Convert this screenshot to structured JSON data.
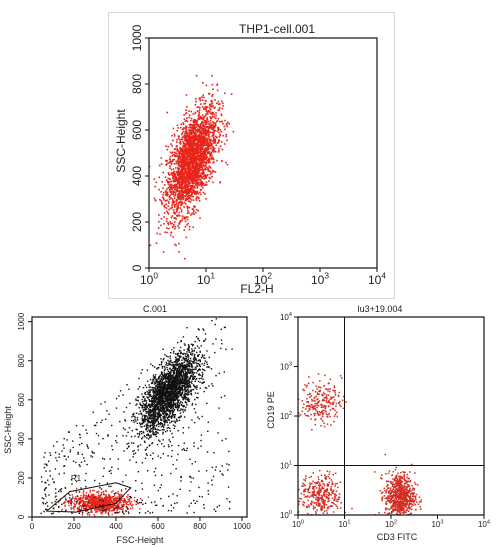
{
  "chart_data": [
    {
      "type": "scatter",
      "title": "THP1-cell.001",
      "xlabel": "FL2-H",
      "ylabel": "SSC-Height",
      "x_scale": "log",
      "xlim": [
        1,
        10000
      ],
      "ylim": [
        0,
        1000
      ],
      "x_ticks": [
        "10",
        "10",
        "10",
        "10",
        "10"
      ],
      "x_tick_exponents": [
        "0",
        "1",
        "2",
        "3",
        "4"
      ],
      "y_ticks": [
        "0",
        "200",
        "400",
        "600",
        "800",
        "1000"
      ],
      "point_color": "#e8251b",
      "populations": [
        {
          "x_center": 5.5,
          "y_center": 470,
          "x_spread_decades": 0.22,
          "y_spread": 130,
          "count": 2600,
          "tilt": 0.7
        }
      ]
    },
    {
      "type": "scatter",
      "title": "C.001",
      "xlabel": "FSC-Height",
      "ylabel": "SSC-Height",
      "xlim": [
        0,
        1024
      ],
      "ylim": [
        0,
        1024
      ],
      "x_ticks": [
        "0",
        "200",
        "400",
        "600",
        "800",
        "1000"
      ],
      "y_ticks": [
        "0",
        "200",
        "400",
        "600",
        "800",
        "1000"
      ],
      "gate_label": "R1",
      "point_color": "#111111",
      "gate_color": "#e8251b",
      "gate_polygon": [
        [
          70,
          30
        ],
        [
          180,
          130
        ],
        [
          400,
          175
        ],
        [
          470,
          150
        ],
        [
          400,
          70
        ],
        [
          210,
          25
        ]
      ],
      "populations": [
        {
          "x_center": 650,
          "y_center": 640,
          "x_spread": 70,
          "y_spread": 110,
          "count": 2400,
          "tilt": 0.9
        },
        {
          "x_center": 320,
          "y_center": 75,
          "x_spread": 70,
          "y_spread": 25,
          "count": 900,
          "gated": true
        }
      ]
    },
    {
      "type": "scatter",
      "title": "lu3+19.004",
      "xlabel": "CD3 FITC",
      "ylabel": "CD19 PE",
      "x_scale": "log",
      "y_scale": "log",
      "xlim": [
        1,
        10000
      ],
      "ylim": [
        1,
        10000
      ],
      "x_ticks": [
        "10",
        "10",
        "10",
        "10",
        "10"
      ],
      "x_tick_exponents": [
        "0",
        "1",
        "2",
        "3",
        "4"
      ],
      "y_ticks": [
        "10",
        "10",
        "10",
        "10",
        "10"
      ],
      "y_tick_exponents": [
        "0",
        "1",
        "2",
        "3",
        "4"
      ],
      "quadrant_x": 10,
      "quadrant_y": 10,
      "point_color": "#d42a1f",
      "populations": [
        {
          "x_center": 3,
          "y_center": 200,
          "x_spread_decades": 0.22,
          "y_spread_decades": 0.22,
          "count": 220
        },
        {
          "x_center": 3,
          "y_center": 2.6,
          "x_spread_decades": 0.22,
          "y_spread_decades": 0.2,
          "count": 320
        },
        {
          "x_center": 150,
          "y_center": 2.4,
          "x_spread_decades": 0.16,
          "y_spread_decades": 0.24,
          "count": 700
        }
      ]
    }
  ]
}
